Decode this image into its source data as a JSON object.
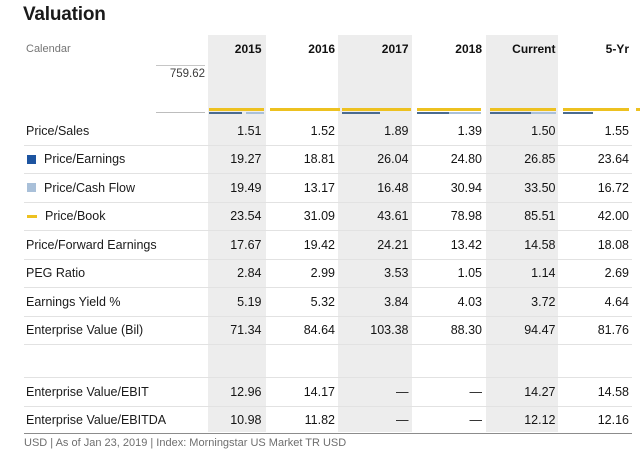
{
  "title": "Valuation",
  "accent_colors": {
    "dark_blue": "#1d54a0",
    "light_blue": "#a9c0d9",
    "yellow": "#edc120",
    "sparkline_slate": "#4a6b90",
    "stripe_gray": "#ededed"
  },
  "table": {
    "corner_label": "Calendar",
    "columns": [
      "2015",
      "2016",
      "2017",
      "2018",
      "Current",
      "5-Yr"
    ],
    "axis_max_label": "759.62",
    "spacer_after_row_index": 7,
    "rows": [
      {
        "label": "Price/Sales",
        "legend": null,
        "values": [
          "1.51",
          "1.52",
          "1.89",
          "1.39",
          "1.50",
          "1.55"
        ]
      },
      {
        "label": "Price/Earnings",
        "legend": "dark-blue-square",
        "values": [
          "19.27",
          "18.81",
          "26.04",
          "24.80",
          "26.85",
          "23.64"
        ]
      },
      {
        "label": "Price/Cash Flow",
        "legend": "light-blue-square",
        "values": [
          "19.49",
          "13.17",
          "16.48",
          "30.94",
          "33.50",
          "16.72"
        ]
      },
      {
        "label": "Price/Book",
        "legend": "yellow-dash",
        "values": [
          "23.54",
          "31.09",
          "43.61",
          "78.98",
          "85.51",
          "42.00"
        ]
      },
      {
        "label": "Price/Forward Earnings",
        "legend": null,
        "values": [
          "17.67",
          "19.42",
          "24.21",
          "13.42",
          "14.58",
          "18.08"
        ]
      },
      {
        "label": "PEG Ratio",
        "legend": null,
        "values": [
          "2.84",
          "2.99",
          "3.53",
          "1.05",
          "1.14",
          "2.69"
        ]
      },
      {
        "label": "Earnings Yield %",
        "legend": null,
        "values": [
          "5.19",
          "5.32",
          "3.84",
          "4.03",
          "3.72",
          "4.64"
        ]
      },
      {
        "label": "Enterprise Value (Bil)",
        "legend": null,
        "values": [
          "71.34",
          "84.64",
          "103.38",
          "88.30",
          "94.47",
          "81.76"
        ]
      },
      {
        "label": "Enterprise Value/EBIT",
        "legend": null,
        "values": [
          "12.96",
          "14.17",
          "—",
          "—",
          "14.27",
          "14.58"
        ]
      },
      {
        "label": "Enterprise Value/EBITDA",
        "legend": null,
        "values": [
          "10.98",
          "11.82",
          "—",
          "—",
          "12.12",
          "12.16"
        ]
      }
    ]
  },
  "footer": "USD | As of Jan 23, 2019 | Index: Morningstar US Market TR USD",
  "chart_data": {
    "type": "table",
    "title": "Valuation",
    "corner_label": "Calendar",
    "columns": [
      "2015",
      "2016",
      "2017",
      "2018",
      "Current",
      "5-Yr"
    ],
    "rows": [
      {
        "label": "Price/Sales",
        "values": [
          1.51,
          1.52,
          1.89,
          1.39,
          1.5,
          1.55
        ]
      },
      {
        "label": "Price/Earnings",
        "values": [
          19.27,
          18.81,
          26.04,
          24.8,
          26.85,
          23.64
        ]
      },
      {
        "label": "Price/Cash Flow",
        "values": [
          19.49,
          13.17,
          16.48,
          30.94,
          33.5,
          16.72
        ]
      },
      {
        "label": "Price/Book",
        "values": [
          23.54,
          31.09,
          43.61,
          78.98,
          85.51,
          42.0
        ]
      },
      {
        "label": "Price/Forward Earnings",
        "values": [
          17.67,
          19.42,
          24.21,
          13.42,
          14.58,
          18.08
        ]
      },
      {
        "label": "PEG Ratio",
        "values": [
          2.84,
          2.99,
          3.53,
          1.05,
          1.14,
          2.69
        ]
      },
      {
        "label": "Earnings Yield %",
        "values": [
          5.19,
          5.32,
          3.84,
          4.03,
          3.72,
          4.64
        ]
      },
      {
        "label": "Enterprise Value (Bil)",
        "values": [
          71.34,
          84.64,
          103.38,
          88.3,
          94.47,
          81.76
        ]
      },
      {
        "label": "Enterprise Value/EBIT",
        "values": [
          12.96,
          14.17,
          null,
          null,
          14.27,
          14.58
        ]
      },
      {
        "label": "Enterprise Value/EBITDA",
        "values": [
          10.98,
          11.82,
          null,
          null,
          12.12,
          12.16
        ]
      }
    ],
    "sparkline": {
      "type": "line",
      "axis_max": 759.62,
      "highlighted_columns": [
        "2015",
        "2017",
        "Current"
      ],
      "series": [
        {
          "name": "Price/Earnings",
          "color": "#1d54a0",
          "values": [
            19.27,
            18.81,
            26.04,
            24.8,
            26.85,
            23.64
          ]
        },
        {
          "name": "Price/Cash Flow",
          "color": "#a9c0d9",
          "values": [
            19.49,
            13.17,
            16.48,
            30.94,
            33.5,
            16.72
          ]
        },
        {
          "name": "Price/Book",
          "color": "#edc120",
          "values": [
            23.54,
            31.09,
            43.61,
            78.98,
            85.51,
            42.0
          ]
        }
      ]
    },
    "footnote": "USD | As of Jan 23, 2019 | Index: Morningstar US Market TR USD"
  }
}
